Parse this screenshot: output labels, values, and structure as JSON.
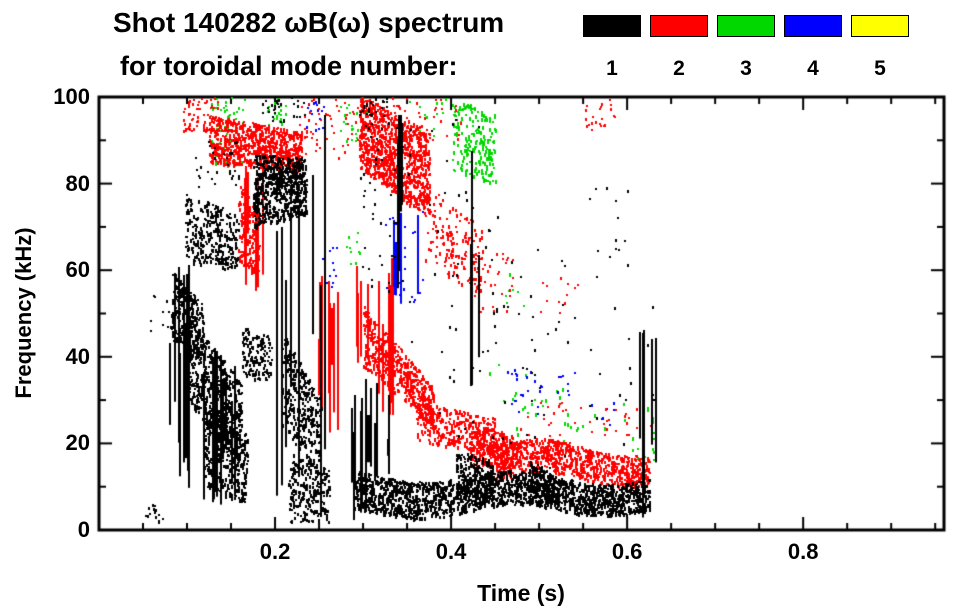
{
  "title": {
    "line1": "Shot 140282 ωB(ω) spectrum",
    "line2": "for toroidal mode number:"
  },
  "legend": {
    "items": [
      {
        "label": "1",
        "color": "#000000"
      },
      {
        "label": "2",
        "color": "#ff0000"
      },
      {
        "label": "3",
        "color": "#00d800"
      },
      {
        "label": "4",
        "color": "#0000ff"
      },
      {
        "label": "5",
        "color": "#ffff00"
      }
    ]
  },
  "chart_data": {
    "type": "scatter",
    "title": "Shot 140282 ωB(ω) spectrum for toroidal mode number",
    "xlabel": "Time (s)",
    "ylabel": "Frequency (kHz)",
    "xlim": [
      0,
      0.96
    ],
    "ylim": [
      0,
      100
    ],
    "grid": false,
    "legend_position": "top-right",
    "xticks": [
      {
        "v": 0.2,
        "label": "0.2"
      },
      {
        "v": 0.4,
        "label": "0.4"
      },
      {
        "v": 0.6,
        "label": "0.6"
      },
      {
        "v": 0.8,
        "label": "0.8"
      }
    ],
    "yticks": [
      {
        "v": 0,
        "label": "0"
      },
      {
        "v": 20,
        "label": "20"
      },
      {
        "v": 40,
        "label": "40"
      },
      {
        "v": 60,
        "label": "60"
      },
      {
        "v": 80,
        "label": "80"
      },
      {
        "v": 100,
        "label": "100"
      }
    ],
    "xminor": 0.05,
    "yminor": 10,
    "series": [
      {
        "name": "n=1",
        "color": "#000000"
      },
      {
        "name": "n=2",
        "color": "#ff0000"
      },
      {
        "name": "n=3",
        "color": "#00d800"
      },
      {
        "name": "n=4",
        "color": "#0000ff"
      },
      {
        "name": "n=5",
        "color": "#ffff00"
      }
    ],
    "clusters": [
      {
        "s": 2,
        "y": "dots",
        "t": [
          0.125,
          0.165
        ],
        "f": [
          84,
          100
        ],
        "n": 60
      },
      {
        "s": 2,
        "y": "dots",
        "t": [
          0.19,
          0.215
        ],
        "f": [
          93,
          100
        ],
        "n": 22
      },
      {
        "s": 2,
        "y": "dots",
        "t": [
          0.27,
          0.305
        ],
        "f": [
          90,
          100
        ],
        "n": 28
      },
      {
        "s": 2,
        "y": "dots",
        "t": [
          0.28,
          0.3
        ],
        "f": [
          60,
          70
        ],
        "n": 10
      },
      {
        "s": 2,
        "y": "dots",
        "t": [
          0.345,
          0.395
        ],
        "f": [
          90,
          100
        ],
        "n": 18
      },
      {
        "s": 2,
        "y": "band",
        "t": [
          0.4,
          0.45
        ],
        "f": [
          83,
          100
        ],
        "f2": [
          80,
          96
        ],
        "n": 200
      },
      {
        "s": 2,
        "y": "band",
        "t": [
          0.44,
          0.63
        ],
        "f": [
          24,
          40
        ],
        "f2": [
          15,
          28
        ],
        "n": 50
      },
      {
        "s": 2,
        "y": "dots",
        "t": [
          0.46,
          0.485
        ],
        "f": [
          52,
          60
        ],
        "n": 8
      },
      {
        "s": 3,
        "y": "dots",
        "t": [
          0.235,
          0.255
        ],
        "f": [
          92,
          100
        ],
        "n": 16
      },
      {
        "s": 3,
        "y": "dots",
        "t": [
          0.25,
          0.27
        ],
        "f": [
          56,
          66
        ],
        "n": 12
      },
      {
        "s": 3,
        "y": "vl",
        "t": [
          0.33,
          0.365
        ],
        "f": [
          50,
          74
        ],
        "n": 6
      },
      {
        "s": 3,
        "y": "dots",
        "t": [
          0.325,
          0.37
        ],
        "f": [
          52,
          74
        ],
        "n": 26
      },
      {
        "s": 3,
        "y": "dots",
        "t": [
          0.46,
          0.505
        ],
        "f": [
          27,
          38
        ],
        "n": 22
      },
      {
        "s": 3,
        "y": "dots",
        "t": [
          0.52,
          0.545
        ],
        "f": [
          31,
          38
        ],
        "n": 9
      },
      {
        "s": 3,
        "y": "dots",
        "t": [
          0.555,
          0.585
        ],
        "f": [
          24,
          30
        ],
        "n": 7
      },
      {
        "s": 1,
        "y": "dots",
        "t": [
          0.095,
          0.135
        ],
        "f": [
          92,
          100
        ],
        "n": 70
      },
      {
        "s": 1,
        "y": "band",
        "t": [
          0.125,
          0.23
        ],
        "f": [
          85,
          96
        ],
        "f2": [
          83,
          92
        ],
        "n": 800
      },
      {
        "s": 1,
        "y": "band",
        "t": [
          0.158,
          0.182
        ],
        "f": [
          62,
          80
        ],
        "f2": [
          58,
          74
        ],
        "n": 150
      },
      {
        "s": 1,
        "y": "vl",
        "t": [
          0.155,
          0.185
        ],
        "f": [
          55,
          85
        ],
        "n": 6
      },
      {
        "s": 1,
        "y": "dots",
        "t": [
          0.225,
          0.3
        ],
        "f": [
          86,
          100
        ],
        "n": 60
      },
      {
        "s": 1,
        "y": "vl",
        "t": [
          0.235,
          0.275
        ],
        "f": [
          22,
          62
        ],
        "n": 11
      },
      {
        "s": 1,
        "y": "band",
        "t": [
          0.295,
          0.375
        ],
        "f": [
          84,
          101
        ],
        "f2": [
          72,
          92
        ],
        "n": 1000
      },
      {
        "s": 1,
        "y": "dots",
        "t": [
          0.33,
          0.41
        ],
        "f": [
          90,
          100
        ],
        "n": 45
      },
      {
        "s": 1,
        "y": "band",
        "t": [
          0.37,
          0.435
        ],
        "f": [
          62,
          80
        ],
        "f2": [
          54,
          70
        ],
        "n": 160
      },
      {
        "s": 1,
        "y": "dots",
        "t": [
          0.42,
          0.47
        ],
        "f": [
          50,
          64
        ],
        "n": 40
      },
      {
        "s": 1,
        "y": "vl",
        "t": [
          0.29,
          0.34
        ],
        "f": [
          25,
          65
        ],
        "n": 12
      },
      {
        "s": 1,
        "y": "band",
        "t": [
          0.3,
          0.38
        ],
        "f": [
          38,
          52
        ],
        "f2": [
          24,
          33
        ],
        "n": 500
      },
      {
        "s": 1,
        "y": "band",
        "t": [
          0.36,
          0.45
        ],
        "f": [
          21,
          30
        ],
        "f2": [
          17,
          26
        ],
        "n": 320
      },
      {
        "s": 1,
        "y": "band",
        "t": [
          0.42,
          0.47
        ],
        "f": [
          15,
          25
        ],
        "f2": [
          15,
          22
        ],
        "n": 220
      },
      {
        "s": 1,
        "y": "band",
        "t": [
          0.45,
          0.625
        ],
        "f": [
          13,
          21
        ],
        "f2": [
          11,
          18
        ],
        "n": 800,
        "w": 1.2,
        "wf": 40
      },
      {
        "s": 1,
        "y": "dots",
        "t": [
          0.47,
          0.63
        ],
        "f": [
          22,
          30
        ],
        "n": 40
      },
      {
        "s": 1,
        "y": "dots",
        "t": [
          0.55,
          0.585
        ],
        "f": [
          92,
          100
        ],
        "n": 22
      },
      {
        "s": 1,
        "y": "dots",
        "t": [
          0.5,
          0.545
        ],
        "f": [
          50,
          60
        ],
        "n": 12
      },
      {
        "s": 0,
        "y": "dots",
        "t": [
          0.05,
          0.075
        ],
        "f": [
          1,
          7
        ],
        "n": 14
      },
      {
        "s": 0,
        "y": "dots",
        "t": [
          0.058,
          0.082
        ],
        "f": [
          46,
          55
        ],
        "n": 12
      },
      {
        "s": 0,
        "y": "vl",
        "t": [
          0.078,
          0.108
        ],
        "f": [
          8,
          62
        ],
        "n": 14
      },
      {
        "s": 0,
        "y": "band",
        "t": [
          0.082,
          0.118
        ],
        "f": [
          44,
          60
        ],
        "f2": [
          40,
          52
        ],
        "n": 280
      },
      {
        "s": 0,
        "y": "band",
        "t": [
          0.1,
          0.162
        ],
        "f": [
          30,
          50
        ],
        "f2": [
          14,
          34
        ],
        "n": 600
      },
      {
        "s": 0,
        "y": "band",
        "t": [
          0.118,
          0.168
        ],
        "f": [
          10,
          30
        ],
        "f2": [
          6,
          22
        ],
        "n": 350
      },
      {
        "s": 0,
        "y": "vl",
        "t": [
          0.115,
          0.17
        ],
        "f": [
          4,
          42
        ],
        "n": 12
      },
      {
        "s": 0,
        "y": "band",
        "t": [
          0.098,
          0.158
        ],
        "f": [
          62,
          78
        ],
        "f2": [
          60,
          73
        ],
        "n": 300
      },
      {
        "s": 0,
        "y": "dots",
        "t": [
          0.1,
          0.16
        ],
        "f": [
          79,
          90
        ],
        "n": 30
      },
      {
        "s": 0,
        "y": "band",
        "t": [
          0.162,
          0.195
        ],
        "f": [
          36,
          47
        ],
        "f2": [
          34,
          45
        ],
        "n": 140
      },
      {
        "s": 0,
        "y": "band",
        "t": [
          0.175,
          0.235
        ],
        "f": [
          70,
          87
        ],
        "f2": [
          73,
          86
        ],
        "n": 650
      },
      {
        "s": 0,
        "y": "dots",
        "t": [
          0.185,
          0.235
        ],
        "f": [
          94,
          100
        ],
        "n": 28
      },
      {
        "s": 0,
        "y": "vl",
        "t": [
          0.2,
          0.262
        ],
        "f": [
          2,
          100
        ],
        "n": 9
      },
      {
        "s": 0,
        "y": "band",
        "t": [
          0.208,
          0.252
        ],
        "f": [
          24,
          46
        ],
        "f2": [
          12,
          30
        ],
        "n": 330
      },
      {
        "s": 0,
        "y": "band",
        "t": [
          0.215,
          0.262
        ],
        "f": [
          2,
          18
        ],
        "f2": [
          2,
          14
        ],
        "n": 240
      },
      {
        "s": 0,
        "y": "dots",
        "t": [
          0.295,
          0.345
        ],
        "f": [
          55,
          95
        ],
        "n": 45
      },
      {
        "s": 0,
        "y": "dots",
        "t": [
          0.295,
          0.33
        ],
        "f": [
          95,
          100
        ],
        "n": 25
      },
      {
        "s": 0,
        "y": "vl",
        "t": [
          0.285,
          0.33
        ],
        "f": [
          2,
          36
        ],
        "n": 16
      },
      {
        "s": 0,
        "y": "vl",
        "t": [
          0.338,
          0.352
        ],
        "f": [
          55,
          100
        ],
        "n": 5
      },
      {
        "s": 0,
        "y": "band",
        "t": [
          0.29,
          0.625
        ],
        "f": [
          4,
          13
        ],
        "f2": [
          5,
          12
        ],
        "n": 1900,
        "w": 1.5,
        "wf": 30
      },
      {
        "s": 0,
        "y": "band",
        "t": [
          0.405,
          0.447
        ],
        "f": [
          8,
          19
        ],
        "f2": [
          8,
          16
        ],
        "n": 180
      },
      {
        "s": 0,
        "y": "band",
        "t": [
          0.487,
          0.522
        ],
        "f": [
          6,
          16
        ],
        "f2": [
          6,
          14
        ],
        "n": 140
      },
      {
        "s": 0,
        "y": "dots",
        "t": [
          0.35,
          0.47
        ],
        "f": [
          20,
          95
        ],
        "n": 55
      },
      {
        "s": 0,
        "y": "vl",
        "t": [
          0.418,
          0.432
        ],
        "f": [
          20,
          92
        ],
        "n": 4
      },
      {
        "s": 0,
        "y": "dots",
        "t": [
          0.47,
          0.635
        ],
        "f": [
          15,
          65
        ],
        "n": 45
      },
      {
        "s": 0,
        "y": "dots",
        "t": [
          0.555,
          0.6
        ],
        "f": [
          62,
          80
        ],
        "n": 12
      },
      {
        "s": 0,
        "y": "vl",
        "t": [
          0.612,
          0.632
        ],
        "f": [
          2,
          58
        ],
        "n": 5
      }
    ]
  }
}
